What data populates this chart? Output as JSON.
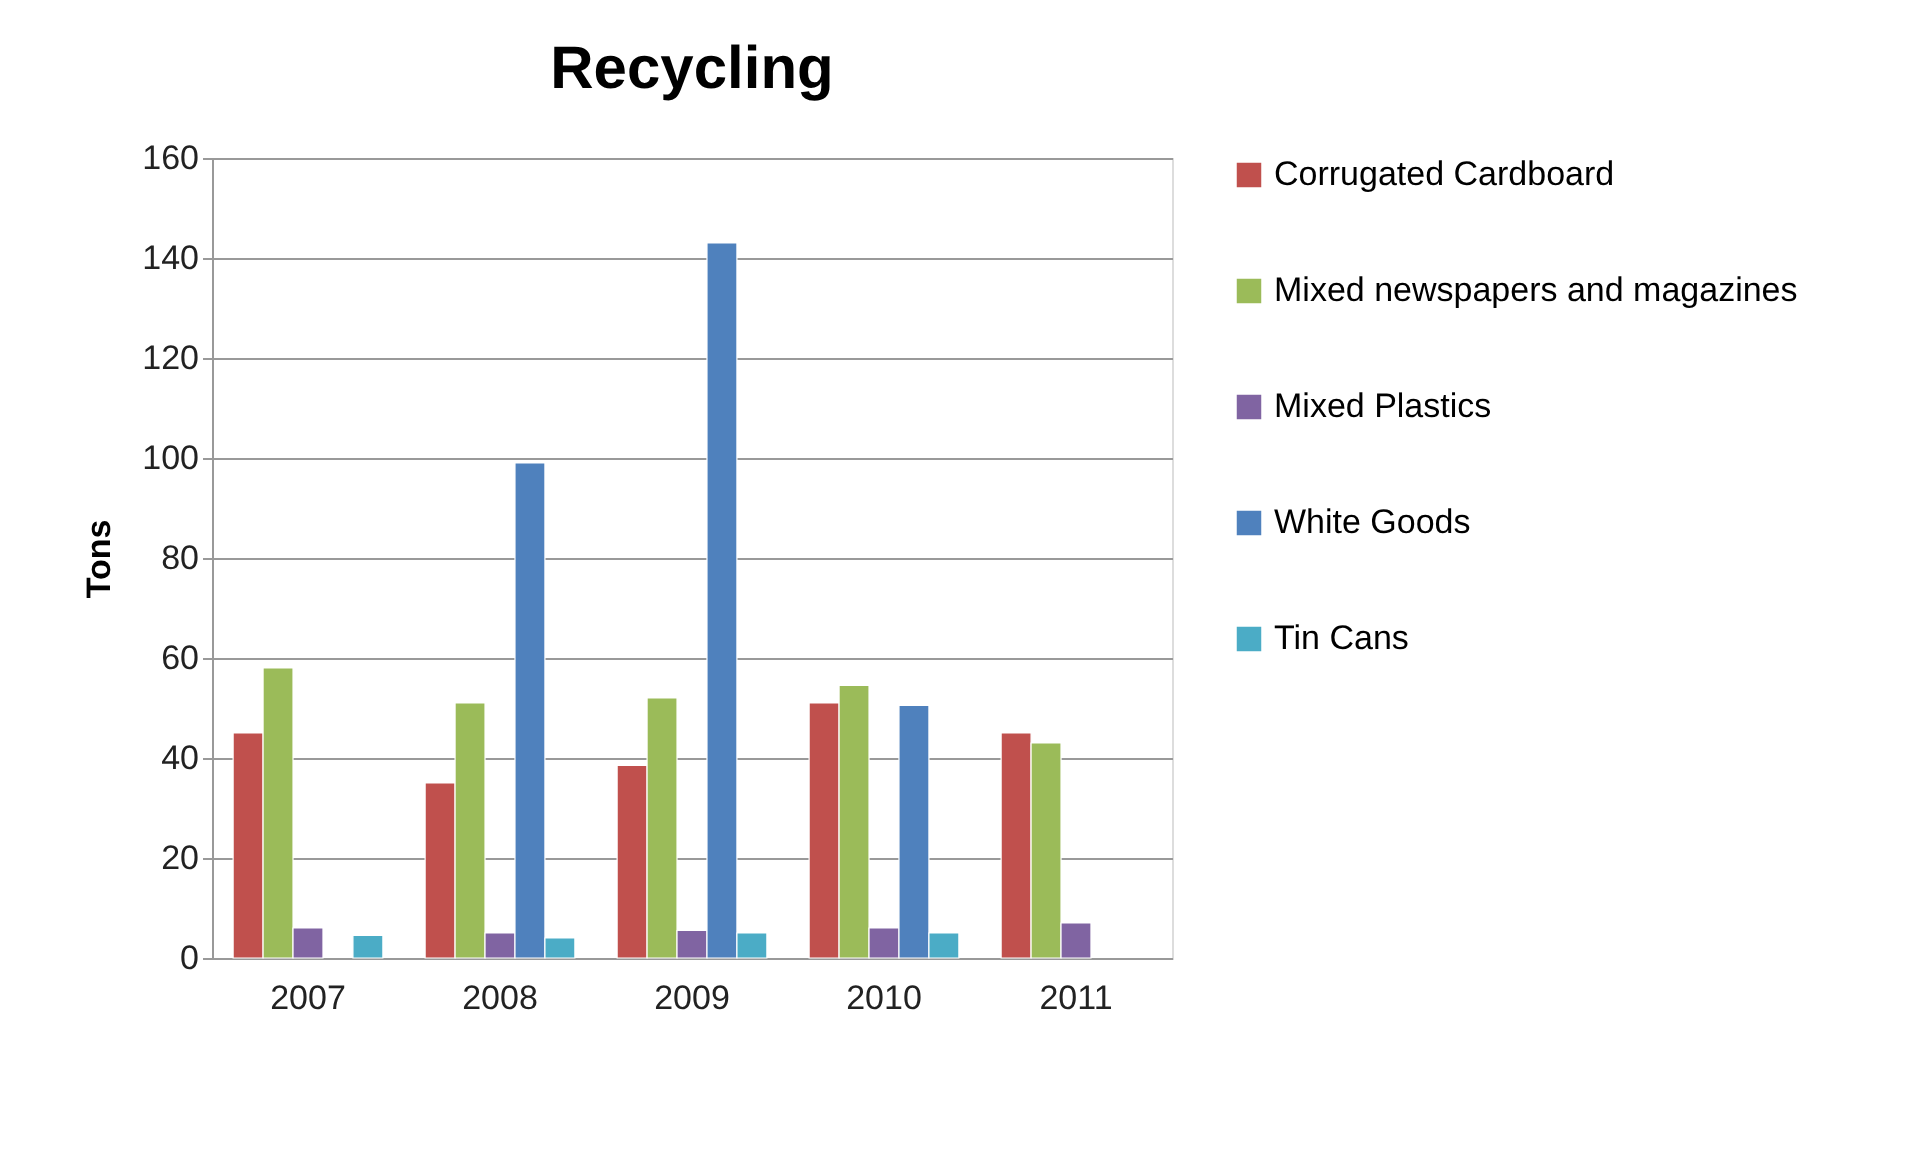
{
  "chart_data": {
    "type": "bar",
    "title": "Recycling",
    "ylabel": "Tons",
    "categories": [
      "2007",
      "2008",
      "2009",
      "2010",
      "2011"
    ],
    "series": [
      {
        "name": "Corrugated Cardboard",
        "color": "#c0504d",
        "values": [
          45,
          35,
          38.5,
          51,
          45
        ]
      },
      {
        "name": "Mixed newspapers and magazines",
        "color": "#9bbb59",
        "values": [
          58,
          51,
          52,
          54.5,
          43
        ]
      },
      {
        "name": "Mixed Plastics",
        "color": "#8064a2",
        "values": [
          6,
          5,
          5.5,
          6,
          7
        ]
      },
      {
        "name": "White Goods",
        "color": "#4f81bd",
        "values": [
          null,
          99,
          143,
          50.5,
          null
        ]
      },
      {
        "name": "Tin Cans",
        "color": "#4bacc6",
        "values": [
          4.5,
          4,
          5,
          5,
          null
        ]
      }
    ],
    "ylim": [
      0,
      160
    ],
    "yticks": [
      0,
      20,
      40,
      60,
      80,
      100,
      120,
      140,
      160
    ],
    "grid": "y",
    "legend": "right"
  }
}
